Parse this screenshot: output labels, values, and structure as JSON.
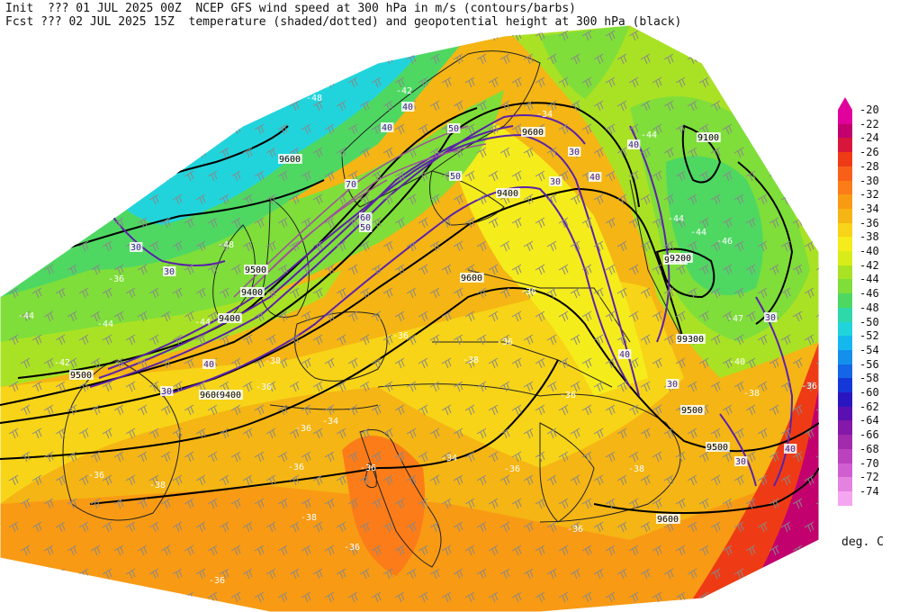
{
  "header": {
    "line1_left": "Init  ??? 01 JUL 2025 00Z",
    "line1_right": "NCEP GFS wind speed at 300 hPa in m/s (contours/barbs)",
    "line2_left": "Fcst ??? 02 JUL 2025 15Z",
    "line2_right": "temperature (shaded/dotted) and geopotential height at 300 hPa (black)"
  },
  "colorbar": {
    "units": "deg. C",
    "labels": [
      "-20",
      "-22",
      "-24",
      "-26",
      "-28",
      "-30",
      "-32",
      "-34",
      "-36",
      "-38",
      "-40",
      "-42",
      "-44",
      "-46",
      "-48",
      "-50",
      "-52",
      "-54",
      "-56",
      "-58",
      "-60",
      "-62",
      "-64",
      "-66",
      "-68",
      "-70",
      "-72",
      "-74"
    ],
    "colors": [
      "#e0009b",
      "#c2006e",
      "#d8163c",
      "#ee3b16",
      "#f8601a",
      "#fb7c18",
      "#f99a14",
      "#f5b514",
      "#f7d417",
      "#f5ec1c",
      "#d8ec1a",
      "#a9e224",
      "#7fde3a",
      "#4ed862",
      "#2ed8a8",
      "#21d4dc",
      "#15b8ee",
      "#1490ec",
      "#1466e6",
      "#1438d8",
      "#2a16c0",
      "#5a10b0",
      "#8418a8",
      "#a22aac",
      "#ba42bc",
      "#d05ed0",
      "#e482e0",
      "#f5a6f0"
    ]
  },
  "map_labels": {
    "height_contours": [
      "9600",
      "9600",
      "9500",
      "9400",
      "9400",
      "9500",
      "9600",
      "9100",
      "9200",
      "9300",
      "9400",
      "9500",
      "9600",
      "9400",
      "9200",
      "9300",
      "9500",
      "9600"
    ],
    "wind_speed_contours": [
      "30",
      "30",
      "40",
      "40",
      "50",
      "60",
      "70",
      "50",
      "40",
      "30",
      "30",
      "40",
      "30",
      "40",
      "30",
      "50",
      "30",
      "40",
      "30",
      "40"
    ],
    "temperature_labels": [
      "-50",
      "-48",
      "-48",
      "-48",
      "-44",
      "-44",
      "-42",
      "-44",
      "-38",
      "-36",
      "-36",
      "-38",
      "-36",
      "-34",
      "-36",
      "-36",
      "-36",
      "-34",
      "-36",
      "-36",
      "-38",
      "-38",
      "-36",
      "-36",
      "-36",
      "-36",
      "-38",
      "-44",
      "-44",
      "-46",
      "-47",
      "-40",
      "-38",
      "-36",
      "-34",
      "-42",
      "-44",
      "-36",
      "-36"
    ]
  }
}
